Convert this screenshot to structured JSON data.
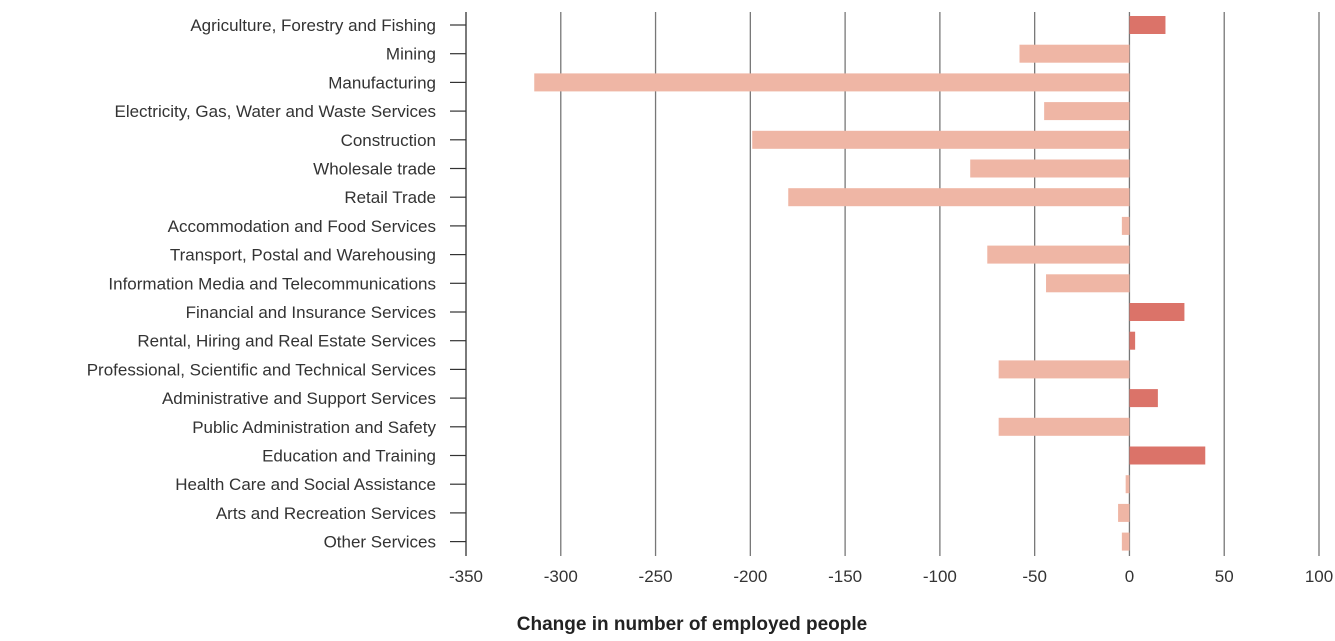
{
  "chart_data": {
    "type": "bar",
    "orientation": "horizontal",
    "title": "",
    "xlabel": "Change in number of employed people",
    "ylabel": "",
    "xlim": [
      -350,
      100
    ],
    "xticks": [
      -350,
      -300,
      -250,
      -200,
      -150,
      -100,
      -50,
      0,
      50,
      100
    ],
    "xtick_labels": [
      "-350",
      "-300",
      "-250",
      "-200",
      "-150",
      "-100",
      "-50",
      "0",
      "50",
      "100"
    ],
    "grid": "vertical",
    "legend": "none",
    "colors": {
      "positive": "#db7369",
      "negative": "#efb6a5",
      "grid": "#777777",
      "text": "#333333"
    },
    "categories": [
      "Agriculture, Forestry and Fishing",
      "Mining",
      "Manufacturing",
      "Electricity, Gas, Water and Waste Services",
      "Construction",
      "Wholesale trade",
      "Retail Trade",
      "Accommodation and Food Services",
      "Transport, Postal and Warehousing",
      "Information Media and Telecommunications",
      "Financial and Insurance Services",
      "Rental, Hiring and Real Estate Services",
      "Professional, Scientific and Technical Services",
      "Administrative and Support Services",
      "Public Administration and Safety",
      "Education and Training",
      "Health Care and Social Assistance",
      "Arts and Recreation Services",
      "Other Services"
    ],
    "values": [
      19,
      -58,
      -314,
      -45,
      -199,
      -84,
      -180,
      -4,
      -75,
      -44,
      29,
      3,
      -69,
      15,
      -69,
      40,
      -2,
      -6,
      -4
    ]
  }
}
